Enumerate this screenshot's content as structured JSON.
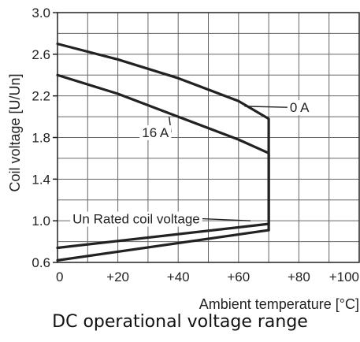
{
  "caption": "DC operational voltage range",
  "chart_data": {
    "type": "line",
    "title": "",
    "xlabel": "Ambient temperature [°C]",
    "ylabel": "Coil voltage [U/Un]",
    "xlim": [
      0,
      100
    ],
    "ylim": [
      0.6,
      3.0
    ],
    "x_ticks": [
      0,
      20,
      40,
      60,
      80,
      100
    ],
    "x_tick_labels": [
      "0",
      "+20",
      "+40",
      "+60",
      "+80",
      "+100"
    ],
    "y_ticks": [
      0.6,
      1.0,
      1.4,
      1.8,
      2.2,
      2.6,
      3.0
    ],
    "y_tick_labels": [
      "0.6",
      "1.0",
      "1.4",
      "1.8",
      "2.2",
      "2.6",
      "3.0"
    ],
    "grid": true,
    "series": [
      {
        "name": "0 A",
        "x": [
          0,
          20,
          40,
          60,
          70,
          70
        ],
        "y": [
          2.7,
          2.55,
          2.37,
          2.15,
          1.98,
          0.97
        ]
      },
      {
        "name": "16 A",
        "x": [
          0,
          20,
          40,
          60,
          70,
          70
        ],
        "y": [
          2.4,
          2.22,
          2.0,
          1.78,
          1.65,
          0.91
        ]
      },
      {
        "name": "Un Rated coil voltage",
        "x": [
          0,
          70
        ],
        "y": [
          0.74,
          0.97
        ]
      },
      {
        "name": "",
        "x": [
          0,
          70
        ],
        "y": [
          0.62,
          0.91
        ]
      }
    ],
    "annotations": [
      {
        "text": "0 A",
        "x": 77,
        "y": 2.09,
        "leader_to": [
          62,
          2.1
        ]
      },
      {
        "text": "16 A",
        "x": 28,
        "y": 1.85,
        "leader_to": [
          37,
          2.0
        ]
      },
      {
        "text": "Un Rated coil voltage",
        "x": 5,
        "y": 1.02,
        "leader_to": [
          64,
          1.0
        ]
      }
    ]
  }
}
